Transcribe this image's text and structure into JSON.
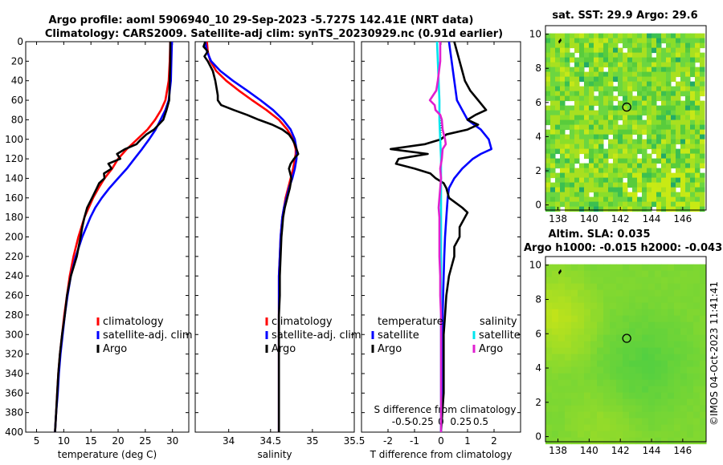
{
  "header": {
    "title_line1": "Argo profile: aoml 5906940_10 29-Sep-2023 -5.727S 142.41E (NRT data)",
    "title_line2": "Climatology: CARS2009. Satellite-adj clim: synTS_20230929.nc (0.91d earlier)"
  },
  "colors": {
    "climatology": "#ff0000",
    "satellite": "#0000ff",
    "argo": "#000000",
    "sat_salinity": "#00e5ee",
    "argo_salinity": "#e020d0"
  },
  "chart_data": [
    {
      "type": "line",
      "name": "temperature",
      "xlabel": "temperature (deg C)",
      "xlim": [
        3,
        33
      ],
      "ylim": [
        0,
        400
      ],
      "xticks": [
        5,
        10,
        15,
        20,
        25,
        30
      ],
      "yticks": [
        0,
        20,
        40,
        60,
        80,
        100,
        120,
        140,
        160,
        180,
        200,
        220,
        240,
        260,
        280,
        300,
        320,
        340,
        360,
        380,
        400
      ],
      "legend": [
        "climatology",
        "satellite-adj. clim",
        "Argo"
      ],
      "series": [
        {
          "name": "climatology",
          "color": "#ff0000",
          "depth": [
            0,
            20,
            40,
            60,
            70,
            80,
            90,
            100,
            110,
            120,
            130,
            140,
            150,
            160,
            170,
            180,
            200,
            220,
            240,
            260,
            280,
            300,
            320,
            340,
            360,
            380,
            400
          ],
          "values": [
            29.6,
            29.5,
            29.3,
            28.7,
            27.9,
            26.8,
            25.4,
            23.5,
            21.6,
            20.0,
            18.9,
            17.5,
            16.4,
            15.4,
            14.6,
            13.8,
            12.7,
            11.8,
            11.1,
            10.6,
            10.1,
            9.7,
            9.3,
            9.0,
            8.8,
            8.6,
            8.4
          ]
        },
        {
          "name": "satellite-adj. clim",
          "color": "#0000ff",
          "depth": [
            0,
            20,
            40,
            60,
            70,
            80,
            90,
            100,
            110,
            120,
            130,
            140,
            150,
            160,
            170,
            180,
            200,
            220,
            240,
            260,
            280,
            300,
            320,
            340,
            360,
            380,
            400
          ],
          "values": [
            29.9,
            29.8,
            29.7,
            29.3,
            28.7,
            27.8,
            26.9,
            25.7,
            24.4,
            23.0,
            21.6,
            20.0,
            18.4,
            17.0,
            15.8,
            14.9,
            13.4,
            12.2,
            11.3,
            10.7,
            10.2,
            9.8,
            9.4,
            9.1,
            8.9,
            8.6,
            8.4
          ]
        },
        {
          "name": "Argo",
          "color": "#000000",
          "depth": [
            0,
            20,
            40,
            60,
            70,
            80,
            90,
            95,
            100,
            105,
            110,
            115,
            120,
            125,
            130,
            135,
            140,
            145,
            150,
            160,
            170,
            180,
            190,
            200,
            220,
            240,
            260,
            280,
            300,
            320,
            340,
            360,
            380,
            400
          ],
          "values": [
            29.6,
            29.6,
            29.5,
            29.4,
            28.9,
            28.3,
            26.6,
            25.2,
            24.2,
            23.4,
            21.3,
            19.8,
            20.4,
            18.2,
            18.8,
            17.4,
            17.5,
            16.5,
            16.1,
            15.2,
            14.3,
            13.8,
            13.4,
            13.1,
            12.4,
            11.3,
            10.6,
            10.2,
            9.7,
            9.3,
            9.0,
            8.8,
            8.6,
            8.4
          ]
        }
      ]
    },
    {
      "type": "line",
      "name": "salinity",
      "xlabel": "salinity",
      "xlim": [
        33.6,
        35.5
      ],
      "ylim": [
        0,
        400
      ],
      "xticks": [
        34,
        34.5,
        35,
        35.5
      ],
      "legend": [
        "climatology",
        "satellite-adj. clim",
        "Argo"
      ],
      "series": [
        {
          "name": "climatology",
          "color": "#ff0000",
          "depth": [
            0,
            10,
            20,
            30,
            40,
            50,
            60,
            70,
            80,
            90,
            100,
            110,
            115,
            120,
            130,
            140,
            150,
            160,
            170,
            180,
            200,
            220,
            240,
            260,
            280,
            300,
            340,
            380,
            400
          ],
          "values": [
            33.74,
            33.75,
            33.78,
            33.85,
            33.97,
            34.12,
            34.28,
            34.45,
            34.6,
            34.7,
            34.77,
            34.8,
            34.8,
            34.79,
            34.77,
            34.74,
            34.71,
            34.68,
            34.66,
            34.64,
            34.62,
            34.61,
            34.6,
            34.6,
            34.6,
            34.6,
            34.6,
            34.6,
            34.6
          ]
        },
        {
          "name": "satellite-adj. clim",
          "color": "#0000ff",
          "depth": [
            0,
            10,
            20,
            30,
            40,
            50,
            60,
            70,
            80,
            90,
            100,
            110,
            115,
            120,
            130,
            140,
            150,
            160,
            170,
            180,
            200,
            220,
            240,
            260,
            280,
            300,
            340,
            380,
            400
          ],
          "values": [
            33.72,
            33.74,
            33.79,
            33.9,
            34.05,
            34.22,
            34.38,
            34.53,
            34.65,
            34.74,
            34.79,
            34.81,
            34.81,
            34.81,
            34.79,
            34.76,
            34.72,
            34.69,
            34.66,
            34.64,
            34.62,
            34.61,
            34.6,
            34.6,
            34.6,
            34.6,
            34.6,
            34.6,
            34.6
          ]
        },
        {
          "name": "Argo",
          "color": "#000000",
          "depth": [
            0,
            5,
            10,
            15,
            20,
            30,
            40,
            50,
            55,
            60,
            65,
            70,
            75,
            80,
            85,
            90,
            95,
            100,
            105,
            110,
            115,
            120,
            125,
            130,
            140,
            150,
            160,
            170,
            180,
            190,
            200,
            220,
            240,
            260,
            280,
            300,
            340,
            380,
            400
          ],
          "values": [
            33.72,
            33.7,
            33.75,
            33.71,
            33.75,
            33.81,
            33.84,
            33.86,
            33.87,
            33.87,
            33.91,
            34.06,
            34.22,
            34.36,
            34.52,
            34.64,
            34.72,
            34.76,
            34.79,
            34.81,
            34.83,
            34.78,
            34.74,
            34.72,
            34.75,
            34.73,
            34.7,
            34.67,
            34.65,
            34.64,
            34.63,
            34.62,
            34.61,
            34.61,
            34.6,
            34.6,
            34.6,
            34.6,
            34.6
          ]
        }
      ]
    },
    {
      "type": "line",
      "name": "differences",
      "xlabel": "T difference from climatology",
      "x2label": "S difference from climatology",
      "xlim": [
        -3,
        3
      ],
      "ylim": [
        0,
        400
      ],
      "xticks": [
        -2,
        -1,
        0,
        1,
        2
      ],
      "x2ticks": [
        "-0.5",
        "-0.25",
        "0",
        "0.25",
        "0.5"
      ],
      "legend_left_title": "temperature",
      "legend_right_title": "salinity",
      "legend_left": [
        "satellite",
        "Argo"
      ],
      "legend_right": [
        "satellite",
        "Argo"
      ],
      "series": [
        {
          "name": "T satellite",
          "color": "#0000ff",
          "depth": [
            0,
            20,
            40,
            60,
            70,
            80,
            90,
            100,
            110,
            115,
            120,
            125,
            130,
            140,
            150,
            160,
            180,
            200,
            220,
            240,
            260,
            280,
            300,
            340,
            380,
            400
          ],
          "values": [
            0.3,
            0.4,
            0.5,
            0.6,
            0.8,
            1.0,
            1.5,
            1.8,
            1.9,
            1.5,
            1.2,
            1.0,
            0.8,
            0.5,
            0.3,
            0.25,
            0.2,
            0.15,
            0.12,
            0.1,
            0.08,
            0.06,
            0.05,
            0.03,
            0.02,
            0.0
          ]
        },
        {
          "name": "T Argo",
          "color": "#000000",
          "depth": [
            0,
            10,
            20,
            30,
            40,
            50,
            60,
            70,
            75,
            80,
            85,
            90,
            95,
            100,
            105,
            110,
            115,
            120,
            125,
            130,
            135,
            140,
            145,
            150,
            160,
            170,
            175,
            180,
            190,
            200,
            210,
            220,
            240,
            260,
            280,
            300,
            320,
            340,
            360,
            380,
            400
          ],
          "values": [
            0.5,
            0.6,
            0.7,
            0.8,
            0.9,
            1.1,
            1.4,
            1.7,
            1.3,
            1.0,
            1.4,
            1.0,
            0.2,
            0.0,
            -0.6,
            -1.9,
            -0.5,
            -1.6,
            -1.7,
            -1.0,
            -0.4,
            -0.2,
            0.1,
            0.2,
            0.3,
            0.8,
            1.0,
            0.9,
            0.7,
            0.7,
            0.5,
            0.5,
            0.3,
            0.2,
            0.15,
            0.1,
            0.1,
            0.1,
            0.1,
            0.05,
            0.0
          ]
        },
        {
          "name": "S satellite",
          "color": "#00e5ee",
          "depth": [
            0,
            20,
            40,
            60,
            80,
            100,
            120,
            140,
            160,
            180,
            200,
            240,
            280,
            320,
            360,
            400
          ],
          "values": [
            -0.05,
            -0.04,
            -0.03,
            -0.02,
            -0.02,
            -0.01,
            0.0,
            0.0,
            0.0,
            0.0,
            0.0,
            0.0,
            0.0,
            0.0,
            0.0,
            0.0
          ]
        },
        {
          "name": "S Argo",
          "color": "#e020d0",
          "depth": [
            0,
            20,
            40,
            50,
            60,
            65,
            70,
            75,
            80,
            90,
            100,
            105,
            110,
            120,
            130,
            140,
            160,
            170,
            180,
            200,
            220,
            240,
            260,
            280,
            300,
            340,
            380,
            400
          ],
          "values": [
            -0.01,
            -0.01,
            -0.04,
            -0.06,
            -0.14,
            -0.08,
            -0.07,
            -0.01,
            0.01,
            0.02,
            0.05,
            0.06,
            0.02,
            0.01,
            -0.01,
            0.0,
            -0.02,
            -0.03,
            -0.02,
            -0.02,
            -0.02,
            -0.01,
            -0.01,
            0.0,
            0.0,
            0.0,
            0.0,
            0.0
          ]
        }
      ]
    },
    {
      "type": "heatmap",
      "name": "sst_map",
      "title": "sat. SST: 29.9 Argo: 29.6",
      "xlim": [
        137.2,
        147.5
      ],
      "ylim": [
        -0.3,
        10.5
      ],
      "xticks": [
        138,
        140,
        142,
        144,
        146
      ],
      "yticks": [
        0,
        2,
        4,
        6,
        8,
        10
      ],
      "argo_location": [
        142.41,
        5.73
      ]
    },
    {
      "type": "heatmap",
      "name": "sla_map",
      "title": "Altim. SLA: 0.035",
      "subtitle": "Argo h1000: -0.015 h2000: -0.043",
      "xlim": [
        137.2,
        147.5
      ],
      "ylim": [
        -0.3,
        10.5
      ],
      "xticks": [
        138,
        140,
        142,
        144,
        146
      ],
      "yticks": [
        0,
        2,
        4,
        6,
        8,
        10
      ],
      "argo_location": [
        142.41,
        5.73
      ]
    }
  ],
  "footer": {
    "credit": "©IMOS 04-Oct-2023 11:41:41"
  }
}
